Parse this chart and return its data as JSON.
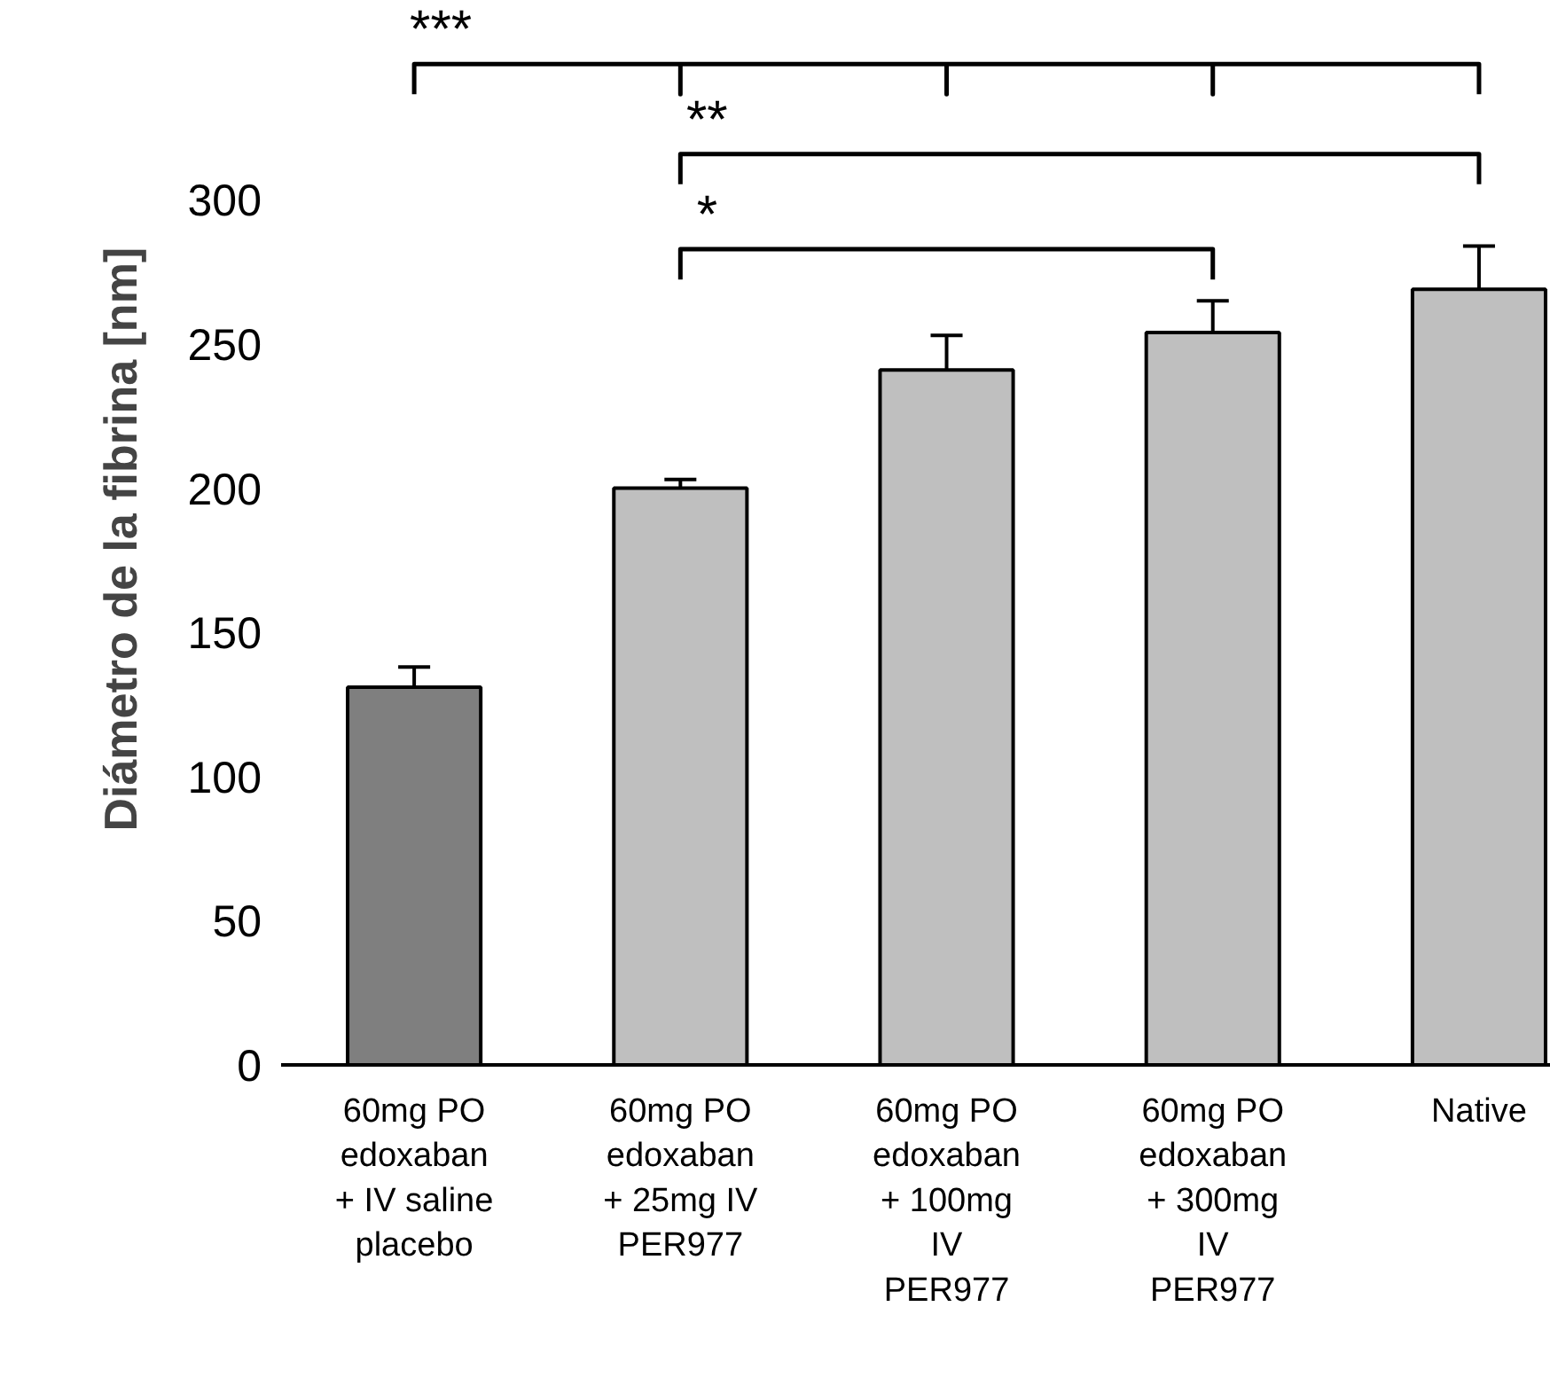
{
  "chart_data": {
    "type": "bar",
    "ylabel": "Diámetro de la fibrina  [nm]",
    "categories": [
      "60mg PO\nedoxaban\n+ IV saline\nplacebo",
      "60mg PO\nedoxaban\n+ 25mg IV\nPER977",
      "60mg PO\nedoxaban\n+ 100mg\nIV\nPER977",
      "60mg PO\nedoxaban\n+ 300mg\nIV\nPER977",
      "Native"
    ],
    "values": [
      131,
      200,
      241,
      254,
      269
    ],
    "colors": [
      "#7f7f7f",
      "#bfbfbf",
      "#bfbfbf",
      "#bfbfbf",
      "#bfbfbf"
    ],
    "errors": [
      [
        131,
        138
      ],
      [
        200,
        203
      ],
      [
        241,
        253
      ],
      [
        254,
        265
      ],
      [
        269,
        284
      ]
    ],
    "ylim": [
      0,
      300
    ],
    "yticks": [
      0,
      50,
      100,
      150,
      200,
      250,
      300
    ],
    "grid": false,
    "annotations": [
      "***",
      "**",
      "*"
    ]
  }
}
